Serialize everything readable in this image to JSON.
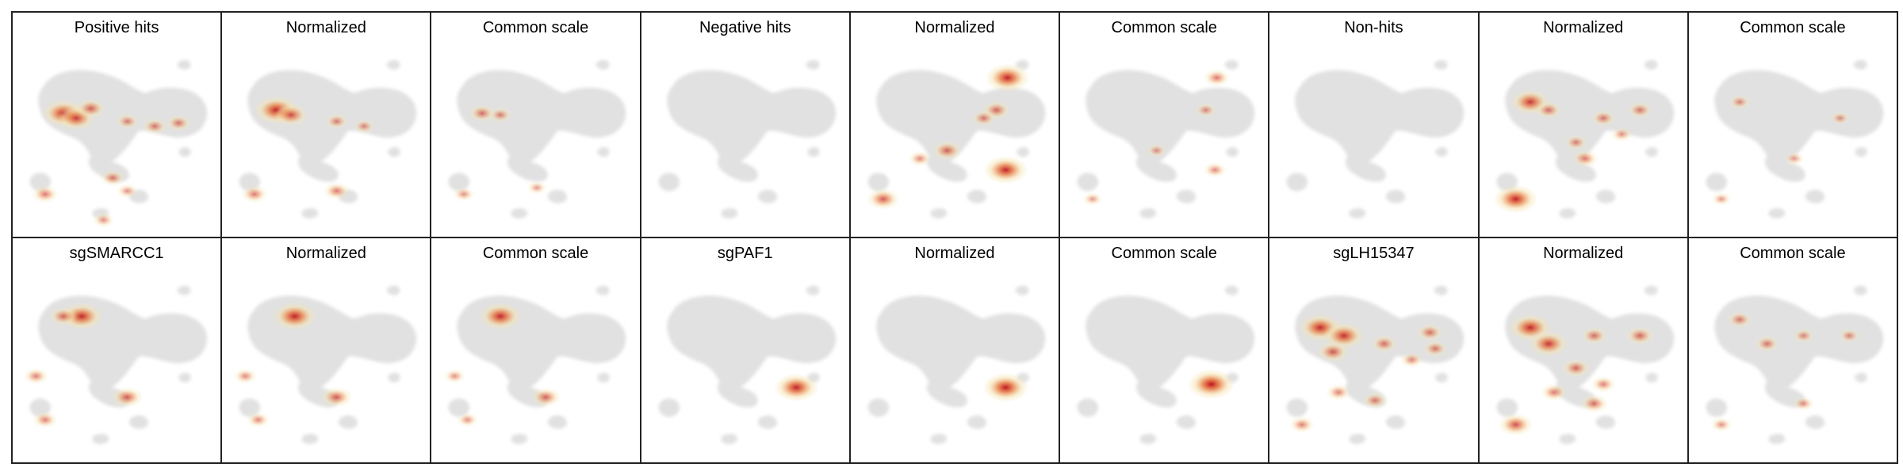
{
  "colors": {
    "background": "#ffffff",
    "border": "#222222",
    "cells": "#e1e1e1",
    "density_low": "#f5e3b0",
    "density_mid": "#e8854e",
    "density_high": "#c0121a"
  },
  "rows": [
    {
      "panels": [
        {
          "title": "Positive hits",
          "hot": [
            [
              0.2,
              0.32,
              0.85
            ],
            [
              0.27,
              0.35,
              0.7
            ],
            [
              0.35,
              0.29,
              0.45
            ],
            [
              0.55,
              0.37,
              0.25
            ],
            [
              0.7,
              0.4,
              0.3
            ],
            [
              0.83,
              0.38,
              0.3
            ],
            [
              0.1,
              0.82,
              0.35
            ],
            [
              0.47,
              0.72,
              0.3
            ],
            [
              0.55,
              0.8,
              0.2
            ],
            [
              0.42,
              0.98,
              0.2
            ]
          ]
        },
        {
          "title": "Normalized",
          "hot": [
            [
              0.22,
              0.3,
              0.9
            ],
            [
              0.3,
              0.33,
              0.6
            ],
            [
              0.55,
              0.37,
              0.25
            ],
            [
              0.7,
              0.4,
              0.2
            ],
            [
              0.1,
              0.82,
              0.35
            ],
            [
              0.55,
              0.8,
              0.35
            ]
          ]
        },
        {
          "title": "Common scale",
          "hot": [
            [
              0.2,
              0.32,
              0.35
            ],
            [
              0.3,
              0.33,
              0.25
            ],
            [
              0.1,
              0.82,
              0.2
            ],
            [
              0.5,
              0.78,
              0.15
            ]
          ]
        },
        {
          "title": "Negative hits",
          "hot": []
        },
        {
          "title": "Normalized",
          "hot": [
            [
              0.78,
              0.1,
              0.9
            ],
            [
              0.72,
              0.3,
              0.4
            ],
            [
              0.45,
              0.55,
              0.45
            ],
            [
              0.77,
              0.67,
              0.9
            ],
            [
              0.1,
              0.85,
              0.55
            ],
            [
              0.3,
              0.6,
              0.25
            ],
            [
              0.65,
              0.35,
              0.3
            ]
          ]
        },
        {
          "title": "Common scale",
          "hot": [
            [
              0.78,
              0.1,
              0.35
            ],
            [
              0.72,
              0.3,
              0.2
            ],
            [
              0.45,
              0.55,
              0.15
            ],
            [
              0.77,
              0.67,
              0.25
            ],
            [
              0.1,
              0.85,
              0.15
            ]
          ]
        },
        {
          "title": "Non-hits",
          "hot": []
        },
        {
          "title": "Normalized",
          "hot": [
            [
              0.2,
              0.25,
              0.75
            ],
            [
              0.3,
              0.3,
              0.35
            ],
            [
              0.6,
              0.35,
              0.3
            ],
            [
              0.8,
              0.3,
              0.3
            ],
            [
              0.5,
              0.6,
              0.35
            ],
            [
              0.12,
              0.85,
              0.9
            ],
            [
              0.45,
              0.5,
              0.25
            ],
            [
              0.7,
              0.45,
              0.2
            ]
          ]
        },
        {
          "title": "Common scale",
          "hot": [
            [
              0.2,
              0.25,
              0.2
            ],
            [
              0.5,
              0.6,
              0.15
            ],
            [
              0.1,
              0.85,
              0.15
            ],
            [
              0.75,
              0.35,
              0.15
            ]
          ]
        }
      ]
    },
    {
      "panels": [
        {
          "title": "sgSMARCC1",
          "hot": [
            [
              0.3,
              0.18,
              0.85
            ],
            [
              0.2,
              0.18,
              0.4
            ],
            [
              0.55,
              0.68,
              0.5
            ],
            [
              0.05,
              0.55,
              0.3
            ],
            [
              0.1,
              0.82,
              0.3
            ]
          ]
        },
        {
          "title": "Normalized",
          "hot": [
            [
              0.32,
              0.18,
              0.9
            ],
            [
              0.55,
              0.68,
              0.5
            ],
            [
              0.05,
              0.55,
              0.25
            ],
            [
              0.12,
              0.82,
              0.25
            ]
          ]
        },
        {
          "title": "Common scale",
          "hot": [
            [
              0.3,
              0.18,
              0.85
            ],
            [
              0.55,
              0.68,
              0.45
            ],
            [
              0.05,
              0.55,
              0.2
            ],
            [
              0.12,
              0.82,
              0.2
            ]
          ]
        },
        {
          "title": "sgPAF1",
          "hot": [
            [
              0.77,
              0.62,
              0.9
            ]
          ]
        },
        {
          "title": "Normalized",
          "hot": [
            [
              0.77,
              0.62,
              0.95
            ]
          ]
        },
        {
          "title": "Common scale",
          "hot": [
            [
              0.75,
              0.6,
              1.0
            ]
          ]
        },
        {
          "title": "sgLH15347",
          "hot": [
            [
              0.2,
              0.25,
              0.85
            ],
            [
              0.33,
              0.3,
              0.8
            ],
            [
              0.27,
              0.4,
              0.5
            ],
            [
              0.55,
              0.35,
              0.35
            ],
            [
              0.8,
              0.28,
              0.35
            ],
            [
              0.83,
              0.38,
              0.3
            ],
            [
              0.5,
              0.7,
              0.3
            ],
            [
              0.3,
              0.65,
              0.3
            ],
            [
              0.1,
              0.85,
              0.3
            ],
            [
              0.7,
              0.45,
              0.25
            ]
          ]
        },
        {
          "title": "Normalized",
          "hot": [
            [
              0.2,
              0.25,
              0.85
            ],
            [
              0.3,
              0.35,
              0.75
            ],
            [
              0.45,
              0.5,
              0.4
            ],
            [
              0.55,
              0.3,
              0.35
            ],
            [
              0.8,
              0.3,
              0.4
            ],
            [
              0.33,
              0.65,
              0.35
            ],
            [
              0.12,
              0.85,
              0.6
            ],
            [
              0.55,
              0.72,
              0.4
            ],
            [
              0.6,
              0.6,
              0.3
            ]
          ]
        },
        {
          "title": "Common scale",
          "hot": [
            [
              0.2,
              0.2,
              0.3
            ],
            [
              0.35,
              0.35,
              0.3
            ],
            [
              0.55,
              0.3,
              0.2
            ],
            [
              0.8,
              0.3,
              0.2
            ],
            [
              0.1,
              0.85,
              0.2
            ],
            [
              0.55,
              0.72,
              0.2
            ]
          ]
        }
      ]
    }
  ]
}
